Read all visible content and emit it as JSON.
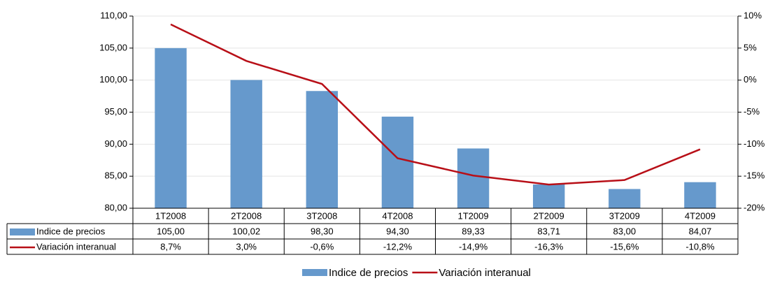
{
  "chart_data": {
    "type": "bar-line-table",
    "categories": [
      "1T2008",
      "2T2008",
      "3T2008",
      "4T2008",
      "1T2009",
      "2T2009",
      "3T2009",
      "4T2009"
    ],
    "series": [
      {
        "name": "Indice de precios",
        "type": "bar",
        "color": "#6699cc",
        "values": [
          105.0,
          100.02,
          98.3,
          94.3,
          89.33,
          83.71,
          83.0,
          84.07
        ],
        "value_labels": [
          "105,00",
          "100,02",
          "98,30",
          "94,30",
          "89,33",
          "83,71",
          "83,00",
          "84,07"
        ]
      },
      {
        "name": "Variación interanual",
        "type": "line",
        "axis": "y2",
        "color": "#b80f17",
        "values": [
          8.7,
          3.0,
          -0.6,
          -12.2,
          -14.9,
          -16.3,
          -15.6,
          -10.8
        ],
        "value_labels": [
          "8,7%",
          "3,0%",
          "-0,6%",
          "-12,2%",
          "-14,9%",
          "-16,3%",
          "-15,6%",
          "-10,8%"
        ]
      }
    ],
    "ylim": [
      80,
      110
    ],
    "yticks": [
      {
        "value": 80,
        "label": "80,00"
      },
      {
        "value": 85,
        "label": "85,00"
      },
      {
        "value": 90,
        "label": "90,00"
      },
      {
        "value": 95,
        "label": "95,00"
      },
      {
        "value": 100,
        "label": "100,00"
      },
      {
        "value": 105,
        "label": "105,00"
      },
      {
        "value": 110,
        "label": "110,00"
      }
    ],
    "y2lim": [
      -20,
      10
    ],
    "y2ticks": [
      {
        "value": -20,
        "label": "-20%"
      },
      {
        "value": -15,
        "label": "-15%"
      },
      {
        "value": -10,
        "label": "-10%"
      },
      {
        "value": -5,
        "label": "-5%"
      },
      {
        "value": 0,
        "label": "0%"
      },
      {
        "value": 5,
        "label": "5%"
      },
      {
        "value": 10,
        "label": "10%"
      }
    ],
    "grid": true
  }
}
